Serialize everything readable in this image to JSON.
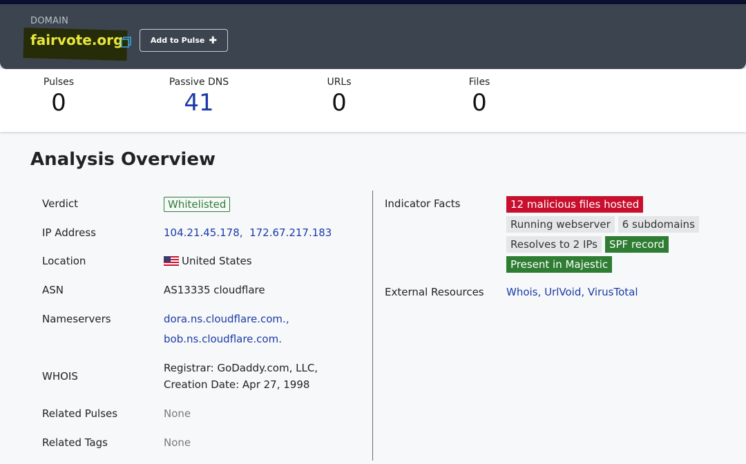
{
  "header": {
    "type_label": "DOMAIN",
    "domain": "fairvote.org",
    "add_to_pulse_label": "Add to Pulse"
  },
  "stats": [
    {
      "label": "Pulses",
      "value": "0"
    },
    {
      "label": "Passive DNS",
      "value": "41"
    },
    {
      "label": "URLs",
      "value": "0"
    },
    {
      "label": "Files",
      "value": "0"
    }
  ],
  "analysis": {
    "title": "Analysis Overview",
    "verdict": {
      "label": "Verdict",
      "value": "Whitelisted"
    },
    "ip": {
      "label": "IP Address",
      "values": [
        "104.21.45.178,",
        "172.67.217.183"
      ]
    },
    "location": {
      "label": "Location",
      "value": "United States"
    },
    "asn": {
      "label": "ASN",
      "value": "AS13335 cloudflare"
    },
    "nameservers": {
      "label": "Nameservers",
      "values": [
        "dora.ns.cloudflare.com.,",
        "bob.ns.cloudflare.com."
      ]
    },
    "whois": {
      "label": "WHOIS",
      "lines": [
        "Registrar: GoDaddy.com, LLC,",
        "Creation Date: Apr 27, 1998"
      ]
    },
    "related_pulses": {
      "label": "Related Pulses",
      "value": "None"
    },
    "related_tags": {
      "label": "Related Tags",
      "value": "None"
    }
  },
  "indicator_facts": {
    "label": "Indicator Facts",
    "rows": [
      [
        {
          "text": "12 malicious files hosted",
          "style": "red"
        }
      ],
      [
        {
          "text": "Running webserver",
          "style": "gray"
        },
        {
          "text": "6 subdomains",
          "style": "gray"
        }
      ],
      [
        {
          "text": "Resolves to 2 IPs",
          "style": "gray"
        },
        {
          "text": "SPF record",
          "style": "green"
        }
      ],
      [
        {
          "text": "Present in Majestic",
          "style": "green"
        }
      ]
    ]
  },
  "external_resources": {
    "label": "External Resources",
    "links": [
      "Whois,",
      "UrlVoid,",
      "VirusTotal"
    ]
  },
  "colors": {
    "header_bg": "#3c454f",
    "domain_text": "#e8e83a",
    "link": "#1b3aa8",
    "danger": "#c8102e",
    "success": "#2e7d32"
  }
}
